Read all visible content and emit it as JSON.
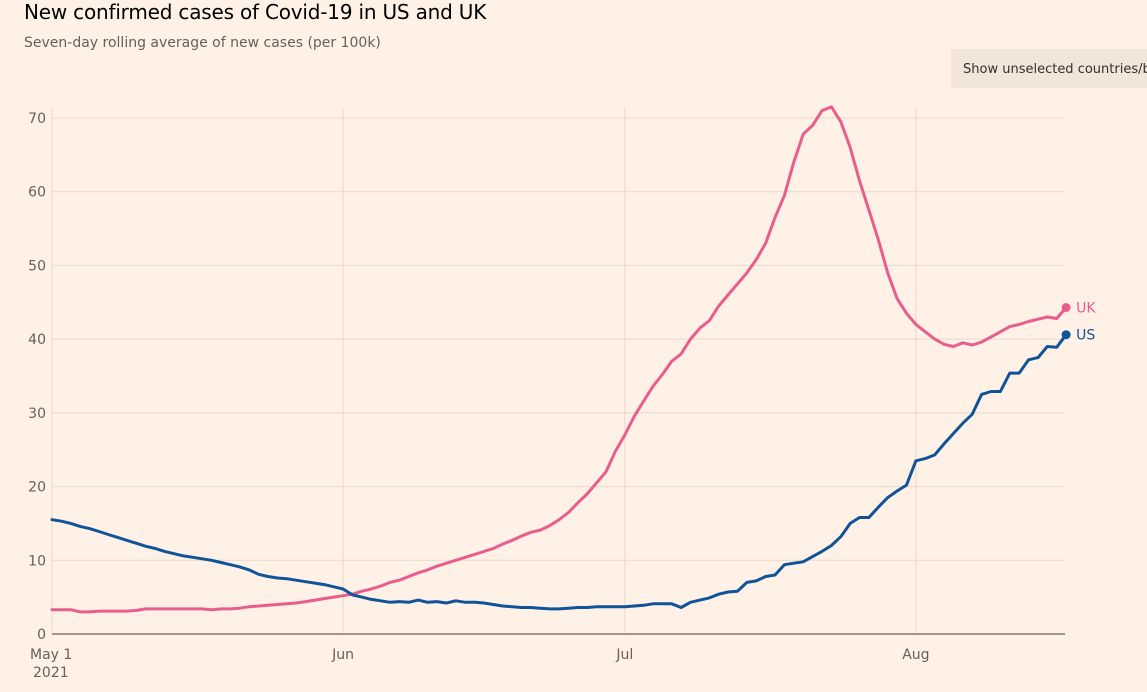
{
  "header": {
    "title": "New confirmed cases of Covid-19 in US and UK",
    "subtitle": "Seven-day rolling average of new cases (per 100k)",
    "toggle_label": "Show unselected countries/blocs"
  },
  "chart_data": {
    "type": "line",
    "title": "New confirmed cases of Covid-19 in US and UK",
    "subtitle": "Seven-day rolling average of new cases (per 100k)",
    "xlabel": "",
    "ylabel": "",
    "ylim": [
      0,
      70
    ],
    "yticks": [
      0,
      10,
      20,
      30,
      40,
      50,
      60,
      70
    ],
    "ytick_labels": [
      "0",
      "10",
      "20",
      "30",
      "40",
      "50",
      "60",
      "70"
    ],
    "x_start": "2021-05-01",
    "x_days": 107,
    "xticks": [
      {
        "day": 0,
        "label": "May 1",
        "sublabel": "2021"
      },
      {
        "day": 31,
        "label": "Jun",
        "sublabel": ""
      },
      {
        "day": 61,
        "label": "Jul",
        "sublabel": ""
      },
      {
        "day": 92,
        "label": "Aug",
        "sublabel": ""
      }
    ],
    "grid": true,
    "legend": "end-of-line labels",
    "series": [
      {
        "name": "UK",
        "label": "UK",
        "color": "#e95d8c",
        "values": [
          3.3,
          3.3,
          3.3,
          3.0,
          3.0,
          3.1,
          3.1,
          3.1,
          3.1,
          3.2,
          3.4,
          3.4,
          3.4,
          3.4,
          3.4,
          3.4,
          3.4,
          3.3,
          3.4,
          3.4,
          3.5,
          3.7,
          3.8,
          3.9,
          4.0,
          4.1,
          4.2,
          4.4,
          4.6,
          4.8,
          5.0,
          5.2,
          5.4,
          5.8,
          6.1,
          6.5,
          7.0,
          7.3,
          7.8,
          8.3,
          8.7,
          9.2,
          9.6,
          10.0,
          10.4,
          10.8,
          11.2,
          11.6,
          12.2,
          12.7,
          13.3,
          13.8,
          14.1,
          14.7,
          15.5,
          16.5,
          17.8,
          19.0,
          20.5,
          22.0,
          24.8,
          27.0,
          29.5,
          31.6,
          33.6,
          35.2,
          37.0,
          38.0,
          40.0,
          41.5,
          42.5,
          44.5,
          46.0,
          47.5,
          49.0,
          50.8,
          53.0,
          56.5,
          59.5,
          64.0,
          67.8,
          69.0,
          71.0,
          71.5,
          69.5,
          66.0,
          61.5,
          57.5,
          53.5,
          49.0,
          45.5,
          43.5,
          42.0,
          41.0,
          40.0,
          39.3,
          39.0,
          39.5,
          39.2,
          39.6,
          40.3,
          41.0,
          41.7,
          42.0,
          42.4,
          42.7,
          43.0,
          42.8,
          44.3
        ],
        "end_value": 44.3
      },
      {
        "name": "US",
        "label": "US",
        "color": "#0f5499",
        "values": [
          15.5,
          15.3,
          15.0,
          14.6,
          14.3,
          13.9,
          13.5,
          13.1,
          12.7,
          12.3,
          11.9,
          11.6,
          11.2,
          10.9,
          10.6,
          10.4,
          10.2,
          10.0,
          9.7,
          9.4,
          9.1,
          8.7,
          8.1,
          7.8,
          7.6,
          7.5,
          7.3,
          7.1,
          6.9,
          6.7,
          6.4,
          6.1,
          5.3,
          5.0,
          4.7,
          4.5,
          4.3,
          4.4,
          4.3,
          4.6,
          4.3,
          4.4,
          4.2,
          4.5,
          4.3,
          4.3,
          4.2,
          4.0,
          3.8,
          3.7,
          3.6,
          3.6,
          3.5,
          3.4,
          3.4,
          3.5,
          3.6,
          3.6,
          3.7,
          3.7,
          3.7,
          3.7,
          3.8,
          3.9,
          4.1,
          4.1,
          4.1,
          3.6,
          4.3,
          4.6,
          4.9,
          5.4,
          5.7,
          5.8,
          7.0,
          7.2,
          7.8,
          8.0,
          9.4,
          9.6,
          9.8,
          10.5,
          11.2,
          12.0,
          13.2,
          15.0,
          15.8,
          15.8,
          17.2,
          18.5,
          19.4,
          20.2,
          23.5,
          23.8,
          24.3,
          25.8,
          27.2,
          28.6,
          29.8,
          32.5,
          32.9,
          32.9,
          35.4,
          35.4,
          37.2,
          37.5,
          39.0,
          38.9,
          40.6
        ]
      }
    ]
  }
}
